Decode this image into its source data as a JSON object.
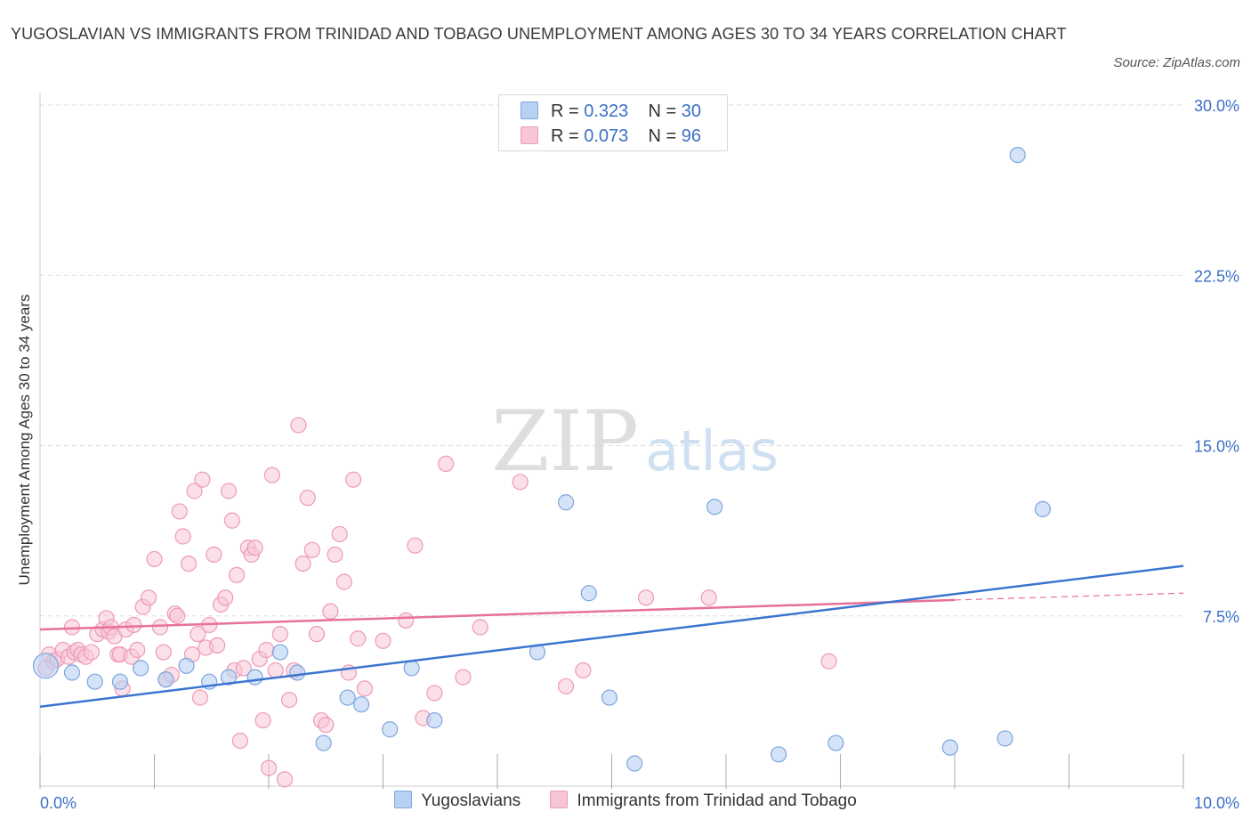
{
  "title": "YUGOSLAVIAN VS IMMIGRANTS FROM TRINIDAD AND TOBAGO UNEMPLOYMENT AMONG AGES 30 TO 34 YEARS CORRELATION CHART",
  "source": "Source: ZipAtlas.com",
  "watermark": {
    "zip": "ZIP",
    "atlas": "atlas"
  },
  "legend": {
    "rows": [
      {
        "r_label": "R = ",
        "r_value": "0.323",
        "n_label": "N = ",
        "n_value": "30"
      },
      {
        "r_label": "R = ",
        "r_value": "0.073",
        "n_label": "N = ",
        "n_value": "96"
      }
    ]
  },
  "colors": {
    "blue_fill": "#b8d1f3",
    "blue_stroke": "#7ea6dd",
    "blue_line": "#3b75d0",
    "pink_fill": "#f7c6d6",
    "pink_stroke": "#ee9ab6",
    "pink_line": "#e8709a",
    "grid": "#dddddd",
    "tick_text": "#3b6fc4"
  },
  "chart_data": {
    "type": "scatter",
    "title": "YUGOSLAVIAN VS IMMIGRANTS FROM TRINIDAD AND TOBAGO UNEMPLOYMENT AMONG AGES 30 TO 34 YEARS CORRELATION CHART",
    "xlabel": "",
    "ylabel": "Unemployment Among Ages 30 to 34 years",
    "xlim": [
      0,
      10
    ],
    "ylim": [
      0,
      30
    ],
    "x_tick_labels": [
      "0.0%",
      "10.0%"
    ],
    "y_ticks": [
      7.5,
      15,
      22.5,
      30
    ],
    "y_tick_labels": [
      "7.5%",
      "15.0%",
      "22.5%",
      "30.0%"
    ],
    "grid": true,
    "legend_position": "top-center",
    "series": [
      {
        "name": "Yugoslavians",
        "color": "#b8d1f3",
        "trend": {
          "x": [
            0,
            10
          ],
          "y": [
            3.5,
            9.7
          ]
        },
        "points": [
          [
            0.05,
            5.3
          ],
          [
            0.28,
            5.0
          ],
          [
            0.48,
            4.6
          ],
          [
            0.7,
            4.6
          ],
          [
            0.88,
            5.2
          ],
          [
            1.1,
            4.7
          ],
          [
            1.28,
            5.3
          ],
          [
            1.48,
            4.6
          ],
          [
            1.65,
            4.8
          ],
          [
            1.88,
            4.8
          ],
          [
            2.1,
            5.9
          ],
          [
            2.25,
            5.0
          ],
          [
            2.48,
            1.9
          ],
          [
            2.69,
            3.9
          ],
          [
            2.81,
            3.6
          ],
          [
            3.06,
            2.5
          ],
          [
            3.25,
            5.2
          ],
          [
            3.45,
            2.9
          ],
          [
            4.35,
            5.9
          ],
          [
            4.6,
            12.5
          ],
          [
            4.8,
            8.5
          ],
          [
            4.98,
            3.9
          ],
          [
            5.2,
            1.0
          ],
          [
            5.9,
            12.3
          ],
          [
            6.46,
            1.4
          ],
          [
            6.96,
            1.9
          ],
          [
            7.96,
            1.7
          ],
          [
            8.44,
            2.1
          ],
          [
            8.55,
            27.8
          ],
          [
            8.77,
            12.2
          ]
        ]
      },
      {
        "name": "Immigrants from Trinidad and Tobago",
        "color": "#f7c6d6",
        "trend": {
          "x": [
            0,
            8
          ],
          "y": [
            6.9,
            8.2
          ]
        },
        "trend_dashed": {
          "x": [
            8,
            10
          ],
          "y": [
            8.2,
            8.5
          ]
        },
        "points": [
          [
            0.05,
            5.2
          ],
          [
            0.08,
            5.8
          ],
          [
            0.12,
            5.5
          ],
          [
            0.15,
            5.6
          ],
          [
            0.2,
            6.0
          ],
          [
            0.25,
            5.7
          ],
          [
            0.28,
            7.0
          ],
          [
            0.3,
            5.9
          ],
          [
            0.33,
            6.0
          ],
          [
            0.36,
            5.8
          ],
          [
            0.4,
            5.7
          ],
          [
            0.45,
            5.9
          ],
          [
            0.5,
            6.7
          ],
          [
            0.55,
            6.9
          ],
          [
            0.58,
            7.4
          ],
          [
            0.6,
            6.8
          ],
          [
            0.62,
            7.0
          ],
          [
            0.65,
            6.6
          ],
          [
            0.68,
            5.8
          ],
          [
            0.7,
            5.8
          ],
          [
            0.72,
            4.3
          ],
          [
            0.75,
            6.9
          ],
          [
            0.8,
            5.7
          ],
          [
            0.82,
            7.1
          ],
          [
            0.85,
            6.0
          ],
          [
            0.9,
            7.9
          ],
          [
            0.95,
            8.3
          ],
          [
            1.0,
            10.0
          ],
          [
            1.05,
            7.0
          ],
          [
            1.08,
            5.9
          ],
          [
            1.1,
            4.7
          ],
          [
            1.15,
            4.9
          ],
          [
            1.18,
            7.6
          ],
          [
            1.2,
            7.5
          ],
          [
            1.22,
            12.1
          ],
          [
            1.25,
            11.0
          ],
          [
            1.3,
            9.8
          ],
          [
            1.33,
            5.8
          ],
          [
            1.35,
            13.0
          ],
          [
            1.38,
            6.7
          ],
          [
            1.4,
            3.9
          ],
          [
            1.42,
            13.5
          ],
          [
            1.45,
            6.1
          ],
          [
            1.48,
            7.1
          ],
          [
            1.52,
            10.2
          ],
          [
            1.55,
            6.2
          ],
          [
            1.58,
            8.0
          ],
          [
            1.62,
            8.3
          ],
          [
            1.65,
            13.0
          ],
          [
            1.68,
            11.7
          ],
          [
            1.7,
            5.1
          ],
          [
            1.72,
            9.3
          ],
          [
            1.75,
            2.0
          ],
          [
            1.78,
            5.2
          ],
          [
            1.82,
            10.5
          ],
          [
            1.85,
            10.2
          ],
          [
            1.88,
            10.5
          ],
          [
            1.92,
            5.6
          ],
          [
            1.95,
            2.9
          ],
          [
            1.98,
            6.0
          ],
          [
            2.0,
            0.8
          ],
          [
            2.03,
            13.7
          ],
          [
            2.06,
            5.1
          ],
          [
            2.1,
            6.7
          ],
          [
            2.14,
            0.3
          ],
          [
            2.18,
            3.8
          ],
          [
            2.22,
            5.1
          ],
          [
            2.26,
            15.9
          ],
          [
            2.3,
            9.8
          ],
          [
            2.34,
            12.7
          ],
          [
            2.38,
            10.4
          ],
          [
            2.42,
            6.7
          ],
          [
            2.46,
            2.9
          ],
          [
            2.5,
            2.7
          ],
          [
            2.54,
            7.7
          ],
          [
            2.58,
            10.2
          ],
          [
            2.62,
            11.1
          ],
          [
            2.66,
            9.0
          ],
          [
            2.7,
            5.0
          ],
          [
            2.74,
            13.5
          ],
          [
            2.78,
            6.5
          ],
          [
            2.84,
            4.3
          ],
          [
            3.0,
            6.4
          ],
          [
            3.2,
            7.3
          ],
          [
            3.28,
            10.6
          ],
          [
            3.35,
            3.0
          ],
          [
            3.45,
            4.1
          ],
          [
            3.55,
            14.2
          ],
          [
            3.7,
            4.8
          ],
          [
            3.85,
            7.0
          ],
          [
            4.2,
            13.4
          ],
          [
            4.6,
            4.4
          ],
          [
            4.75,
            5.1
          ],
          [
            5.3,
            8.3
          ],
          [
            5.85,
            8.3
          ],
          [
            6.9,
            5.5
          ]
        ]
      }
    ]
  }
}
